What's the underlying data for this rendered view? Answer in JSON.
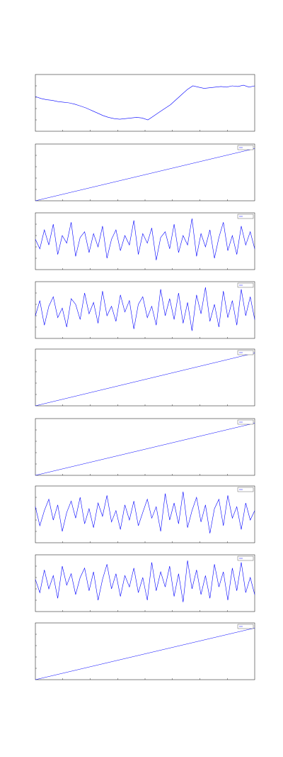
{
  "chart_data": [
    {
      "type": "line",
      "color": "#0000ff",
      "ylim": [
        0,
        0.9
      ],
      "values": [
        0.55,
        0.52,
        0.5,
        0.49,
        0.47,
        0.46,
        0.45,
        0.43,
        0.4,
        0.37,
        0.33,
        0.29,
        0.25,
        0.22,
        0.2,
        0.19,
        0.2,
        0.21,
        0.22,
        0.21,
        0.18,
        0.24,
        0.3,
        0.36,
        0.42,
        0.5,
        0.58,
        0.66,
        0.72,
        0.7,
        0.68,
        0.69,
        0.7,
        0.71,
        0.7,
        0.72,
        0.71,
        0.73,
        0.7,
        0.72
      ]
    },
    {
      "type": "line",
      "color": "#0000ff",
      "ylim": [
        0,
        100
      ],
      "values": [
        0,
        92
      ]
    },
    {
      "type": "line",
      "color": "#0000ff",
      "ylim": [
        -1.5,
        1.5
      ],
      "values": [
        0.1,
        -0.4,
        0.6,
        -0.2,
        0.9,
        -0.7,
        0.3,
        -0.1,
        1.0,
        -0.8,
        0.2,
        0.5,
        -0.6,
        0.4,
        -0.3,
        0.8,
        -0.9,
        0.1,
        0.6,
        -0.5,
        0.3,
        -0.2,
        1.1,
        -0.7,
        0.4,
        -0.1,
        0.7,
        -1.0,
        0.2,
        0.5,
        -0.4,
        0.9,
        -0.6,
        0.3,
        -0.2,
        1.2,
        -0.8,
        0.4,
        -0.3,
        0.6,
        -0.9,
        0.2,
        1.0,
        -0.5,
        0.3,
        -0.7,
        0.8,
        -0.2,
        0.5,
        -0.4
      ]
    },
    {
      "type": "line",
      "color": "#0000ff",
      "ylim": [
        -1.5,
        1.5
      ],
      "values": [
        -0.3,
        0.5,
        -0.8,
        0.2,
        0.7,
        -0.4,
        0.1,
        -0.9,
        0.6,
        0.3,
        -0.5,
        0.9,
        -0.2,
        0.4,
        -0.7,
        1.0,
        -0.3,
        0.2,
        -0.6,
        0.8,
        -0.1,
        0.5,
        -1.0,
        0.3,
        0.7,
        -0.4,
        0.2,
        -0.8,
        1.1,
        -0.3,
        0.6,
        -0.5,
        0.9,
        -0.7,
        0.4,
        -1.1,
        0.8,
        -0.2,
        1.2,
        -0.6,
        0.3,
        -0.9,
        1.0,
        -0.4,
        0.5,
        -0.8,
        1.1,
        -0.3,
        0.7,
        -0.5
      ]
    },
    {
      "type": "line",
      "color": "#0000ff",
      "ylim": [
        0,
        100
      ],
      "values": [
        0,
        93
      ]
    },
    {
      "type": "line",
      "color": "#0000ff",
      "ylim": [
        0,
        100
      ],
      "values": [
        0,
        92
      ]
    },
    {
      "type": "line",
      "color": "#0000ff",
      "ylim": [
        -1.5,
        1.5
      ],
      "values": [
        0.4,
        -0.6,
        0.2,
        0.8,
        -0.3,
        0.5,
        -0.9,
        0.1,
        0.7,
        -0.2,
        0.9,
        -0.5,
        0.3,
        -0.7,
        0.6,
        -0.1,
        1.0,
        -0.4,
        0.2,
        -0.8,
        0.5,
        -0.3,
        0.7,
        -0.6,
        0.1,
        0.8,
        -0.2,
        0.4,
        -0.9,
        1.1,
        -0.3,
        0.6,
        -0.5,
        1.2,
        -0.7,
        0.2,
        0.9,
        -0.4,
        0.5,
        -1.0,
        0.3,
        0.8,
        -0.6,
        1.0,
        -0.2,
        0.4,
        -0.8,
        0.6,
        -0.3,
        0.2
      ]
    },
    {
      "type": "line",
      "color": "#0000ff",
      "ylim": [
        -1.5,
        1.5
      ],
      "values": [
        0.2,
        -0.5,
        0.7,
        -0.3,
        0.4,
        -0.8,
        0.9,
        -0.1,
        0.5,
        -0.6,
        0.3,
        0.8,
        -0.4,
        0.6,
        -0.9,
        0.2,
        1.0,
        -0.3,
        0.5,
        -0.7,
        0.4,
        -0.2,
        0.8,
        -0.5,
        0.3,
        -0.9,
        1.1,
        -0.4,
        0.6,
        -0.2,
        0.9,
        -0.7,
        0.5,
        -1.0,
        1.2,
        -0.3,
        0.7,
        -0.6,
        0.4,
        -0.8,
        1.0,
        -0.2,
        0.6,
        -0.9,
        0.8,
        -0.4,
        1.1,
        -0.5,
        0.3,
        -0.6
      ]
    },
    {
      "type": "line",
      "color": "#0000ff",
      "ylim": [
        0,
        100
      ],
      "values": [
        0,
        91
      ]
    }
  ]
}
